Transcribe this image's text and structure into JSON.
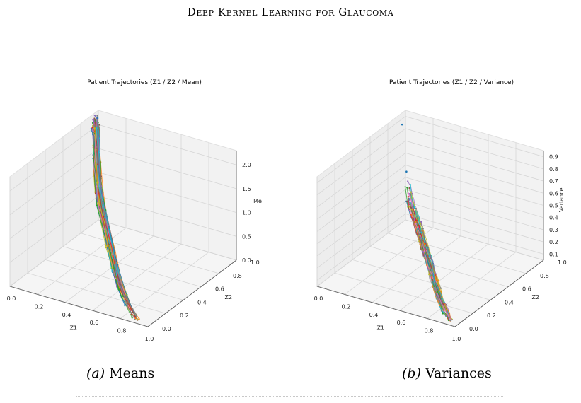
{
  "header": {
    "running_title": "Deep Kernel Learning for Glaucoma"
  },
  "panels": [
    {
      "title": "Patient Trajectories (Z1 / Z2 / Mean)",
      "caption_label": "(a)",
      "caption_text": "Means",
      "chart_data": {
        "type": "scatter",
        "projection": "3d",
        "title": "Patient Trajectories (Z1 / Z2 / Mean)",
        "xlabel": "Z1",
        "ylabel": "Z2",
        "zlabel": "Me",
        "xlim": [
          0,
          1
        ],
        "ylim": [
          0,
          1
        ],
        "zlim": [
          0,
          2.3
        ],
        "xticks": [
          "0.0",
          "0.2",
          "0.4",
          "0.6",
          "0.8",
          "1.0"
        ],
        "yticks": [
          "0.0",
          "0.2",
          "0.4",
          "0.6",
          "0.8",
          "1.0"
        ],
        "zticks": [
          "0.0",
          "0.5",
          "1.0",
          "1.5",
          "2.0"
        ],
        "grid": true,
        "series_colors": [
          "#1f77b4",
          "#ff7f0e",
          "#2ca02c",
          "#d62728",
          "#9467bd",
          "#8c564b",
          "#e377c2",
          "#7f7f7f",
          "#bcbd22",
          "#17becf"
        ],
        "trajectory_trend": {
          "z1": [
            0.0,
            0.05,
            0.15,
            0.3,
            0.5,
            0.7,
            0.9
          ],
          "z2": [
            0.95,
            0.9,
            0.75,
            0.55,
            0.35,
            0.15,
            0.02
          ],
          "value": [
            2.2,
            2.0,
            1.7,
            1.3,
            0.8,
            0.35,
            0.05
          ]
        }
      }
    },
    {
      "title": "Patient Trajectories (Z1 / Z2 / Variance)",
      "caption_label": "(b)",
      "caption_text": "Variances",
      "chart_data": {
        "type": "scatter",
        "projection": "3d",
        "title": "Patient Trajectories (Z1 / Z2 / Variance)",
        "xlabel": "Z1",
        "ylabel": "Z2",
        "zlabel": "Variance",
        "xlim": [
          0,
          1
        ],
        "ylim": [
          0,
          1
        ],
        "zlim": [
          0.05,
          0.95
        ],
        "xticks": [
          "0.0",
          "0.2",
          "0.4",
          "0.6",
          "0.8",
          "1.0"
        ],
        "yticks": [
          "0.0",
          "0.2",
          "0.4",
          "0.6",
          "0.8",
          "1.0"
        ],
        "zticks": [
          "0.1",
          "0.2",
          "0.3",
          "0.4",
          "0.5",
          "0.6",
          "0.7",
          "0.8",
          "0.9"
        ],
        "grid": true,
        "series_colors": [
          "#1f77b4",
          "#ff7f0e",
          "#2ca02c",
          "#d62728",
          "#9467bd",
          "#8c564b",
          "#e377c2",
          "#7f7f7f",
          "#bcbd22",
          "#17becf"
        ],
        "trajectory_trend": {
          "z1": [
            0.05,
            0.2,
            0.35,
            0.5,
            0.65,
            0.8,
            0.95
          ],
          "z2": [
            0.9,
            0.75,
            0.6,
            0.45,
            0.3,
            0.15,
            0.02
          ],
          "value": [
            0.5,
            0.4,
            0.32,
            0.25,
            0.18,
            0.12,
            0.08
          ]
        }
      }
    }
  ]
}
